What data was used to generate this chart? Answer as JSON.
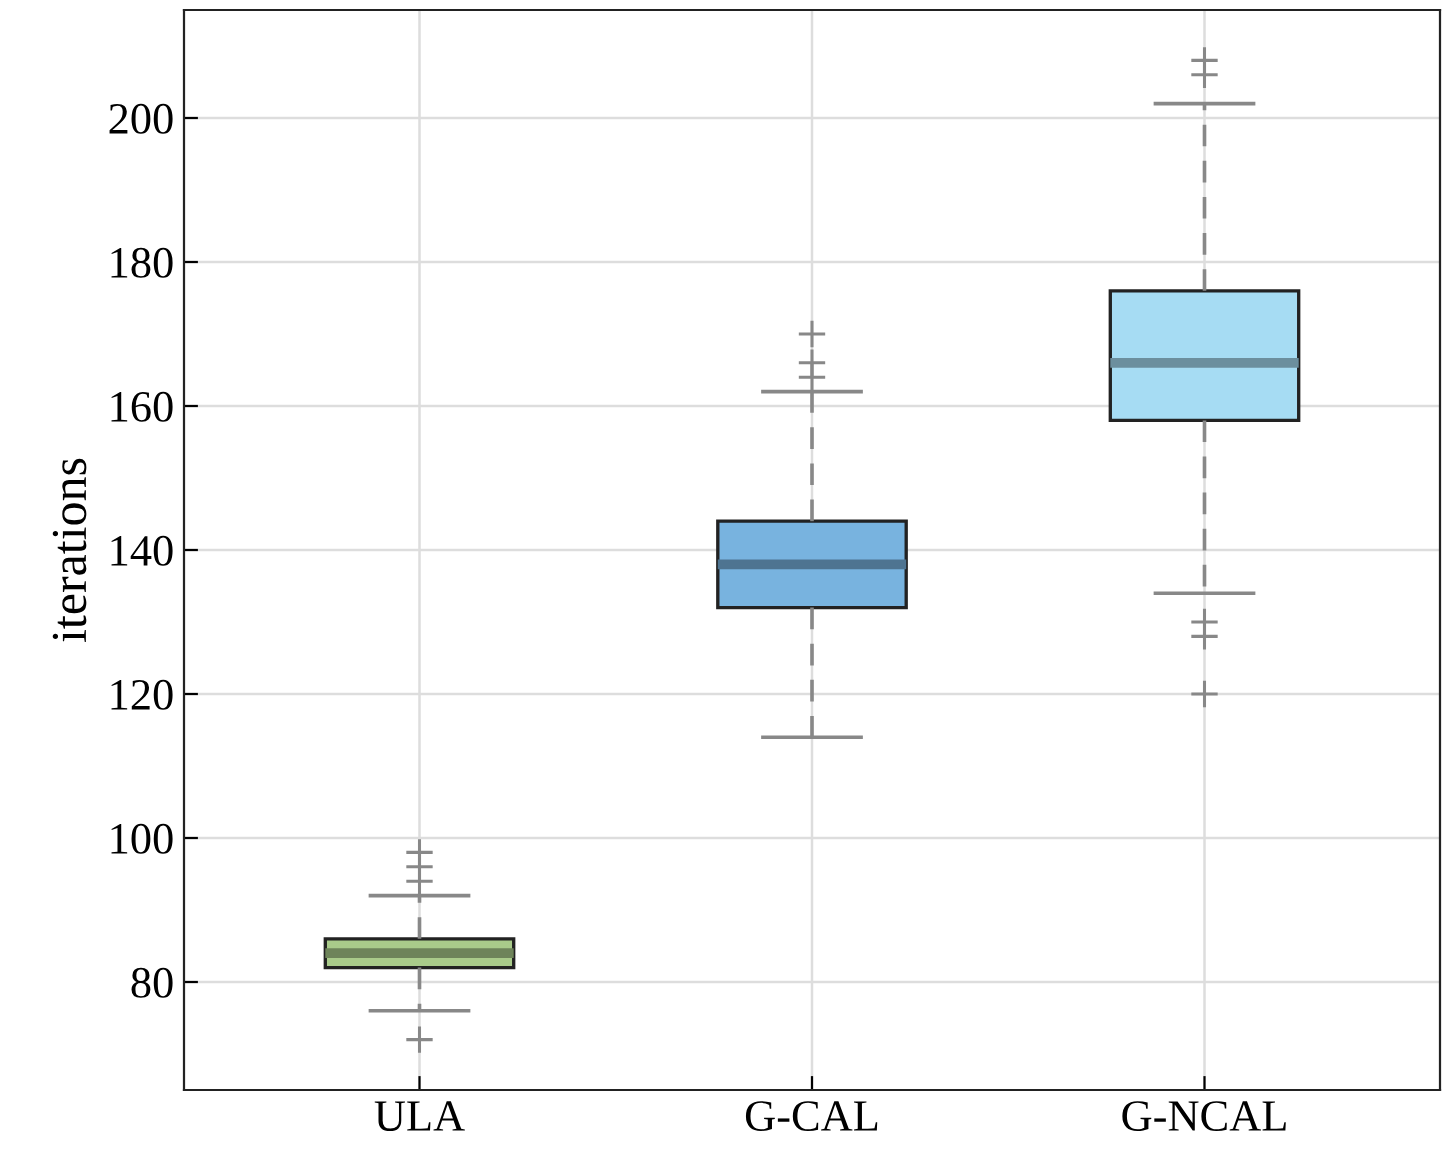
{
  "chart_data": {
    "type": "box",
    "ylabel": "iterations",
    "categories": [
      "ULA",
      "G-CAL",
      "G-NCAL"
    ],
    "colors": [
      "#a9cb8a",
      "#78b3df",
      "#a6dcf3"
    ],
    "boxes": [
      {
        "low": 76,
        "q1": 82,
        "median": 84,
        "q3": 86,
        "high": 92,
        "outliers": [
          98,
          96,
          94,
          72
        ]
      },
      {
        "low": 114,
        "q1": 132,
        "median": 138,
        "q3": 144,
        "high": 162,
        "outliers": [
          170,
          166,
          164
        ]
      },
      {
        "low": 134,
        "q1": 158,
        "median": 166,
        "q3": 176,
        "high": 202,
        "outliers": [
          208,
          206,
          130,
          128,
          120
        ]
      }
    ],
    "ylim": [
      65,
      215
    ],
    "yticks": [
      80,
      100,
      120,
      140,
      160,
      180,
      200
    ],
    "grid": true,
    "line_style": "dashed",
    "marker": "cross"
  }
}
